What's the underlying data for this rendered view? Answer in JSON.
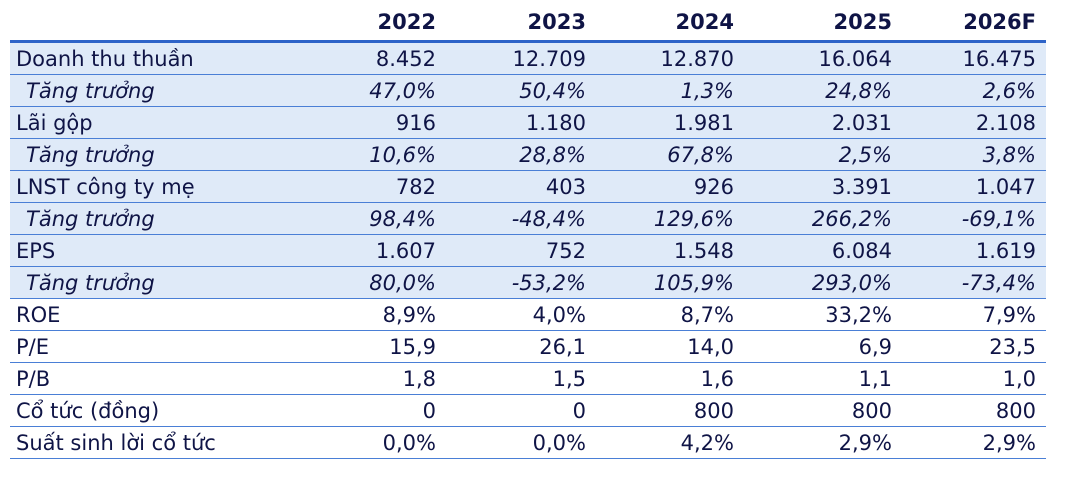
{
  "table": {
    "headers": [
      "",
      "2022",
      "2023",
      "2024",
      "2025",
      "2026F"
    ],
    "rows": [
      {
        "label": "Doanh thu thuần",
        "values": [
          "8.452",
          "12.709",
          "12.870",
          "16.064",
          "16.475"
        ],
        "style": "shade"
      },
      {
        "label": "Tăng trưởng",
        "values": [
          "47,0%",
          "50,4%",
          "1,3%",
          "24,8%",
          "2,6%"
        ],
        "style": "shade growth"
      },
      {
        "label": "Lãi gộp",
        "values": [
          "916",
          "1.180",
          "1.981",
          "2.031",
          "2.108"
        ],
        "style": "shade"
      },
      {
        "label": "Tăng trưởng",
        "values": [
          "10,6%",
          "28,8%",
          "67,8%",
          "2,5%",
          "3,8%"
        ],
        "style": "shade growth"
      },
      {
        "label": "LNST công ty mẹ",
        "values": [
          "782",
          "403",
          "926",
          "3.391",
          "1.047"
        ],
        "style": "shade"
      },
      {
        "label": "Tăng trưởng",
        "values": [
          "98,4%",
          "-48,4%",
          "129,6%",
          "266,2%",
          "-69,1%"
        ],
        "style": "shade growth"
      },
      {
        "label": "EPS",
        "values": [
          "1.607",
          "752",
          "1.548",
          "6.084",
          "1.619"
        ],
        "style": "shade"
      },
      {
        "label": "Tăng trưởng",
        "values": [
          "80,0%",
          "-53,2%",
          "105,9%",
          "293,0%",
          "-73,4%"
        ],
        "style": "shade growth"
      },
      {
        "label": "ROE",
        "values": [
          "8,9%",
          "4,0%",
          "8,7%",
          "33,2%",
          "7,9%"
        ],
        "style": "plain"
      },
      {
        "label": "P/E",
        "values": [
          "15,9",
          "26,1",
          "14,0",
          "6,9",
          "23,5"
        ],
        "style": "plain"
      },
      {
        "label": "P/B",
        "values": [
          "1,8",
          "1,5",
          "1,6",
          "1,1",
          "1,0"
        ],
        "style": "plain"
      },
      {
        "label": "Cổ tức (đồng)",
        "values": [
          "0",
          "0",
          "800",
          "800",
          "800"
        ],
        "style": "plain"
      },
      {
        "label": "Suất sinh lời cổ tức",
        "values": [
          "0,0%",
          "0,0%",
          "4,2%",
          "2,9%",
          "2,9%"
        ],
        "style": "plain"
      }
    ]
  }
}
